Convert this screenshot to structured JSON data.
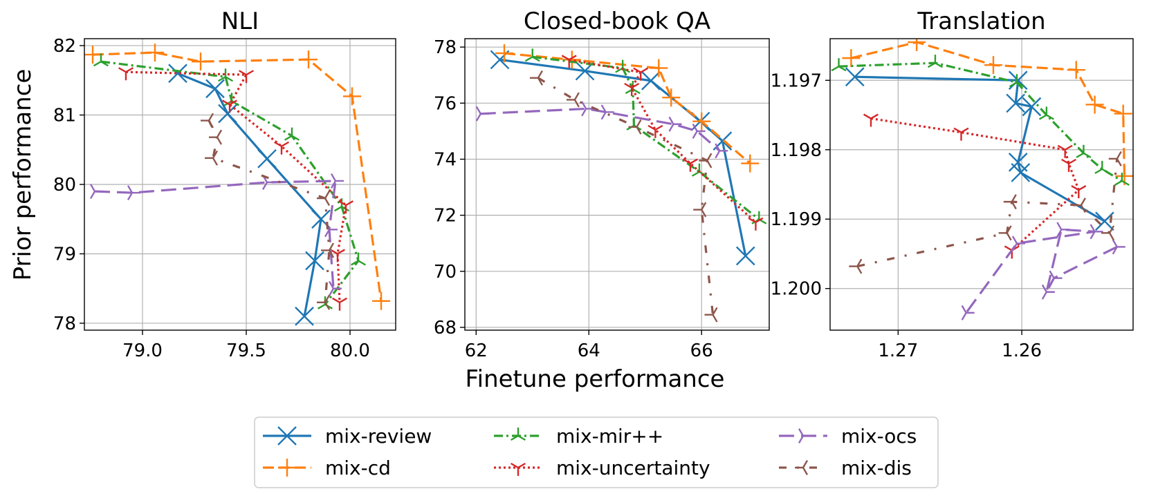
{
  "shared": {
    "xlabel": "Finetune performance",
    "ylabel": "Prior performance"
  },
  "legend": {
    "placement": "bottom-center",
    "columns": 3
  },
  "series_styles": [
    {
      "name": "mix-review",
      "color": "#1f77b4",
      "dash": "solid",
      "marker": "x"
    },
    {
      "name": "mix-cd",
      "color": "#ff7f0e",
      "dash": "dashed",
      "marker": "plus"
    },
    {
      "name": "mix-mir++",
      "color": "#2ca02c",
      "dash": "dashdot",
      "marker": "tri-down"
    },
    {
      "name": "mix-uncertainty",
      "color": "#d62728",
      "dash": "dotted",
      "marker": "tri-up"
    },
    {
      "name": "mix-ocs",
      "color": "#9467bd",
      "dash": "longdash",
      "marker": "tri-left"
    },
    {
      "name": "mix-dis",
      "color": "#8c564b",
      "dash": "dashdotsparse",
      "marker": "tri-right"
    }
  ],
  "chart_data": [
    {
      "type": "line",
      "title": "NLI",
      "xlim": [
        78.72,
        80.22
      ],
      "ylim": [
        77.9,
        82.1
      ],
      "xticks": [
        79.0,
        79.5,
        80.0
      ],
      "xtick_labels": [
        "79.0",
        "79.5",
        "80.0"
      ],
      "yticks": [
        78,
        79,
        80,
        81,
        82
      ],
      "ytick_labels": [
        "78",
        "79",
        "80",
        "81",
        "82"
      ],
      "x_inverted": false,
      "y_inverted": false,
      "grid": true,
      "series": [
        {
          "name": "mix-review",
          "x": [
            79.17,
            79.35,
            79.41,
            79.6,
            79.86,
            79.83,
            79.78
          ],
          "y": [
            81.6,
            81.38,
            81.02,
            80.37,
            79.5,
            78.9,
            78.1
          ]
        },
        {
          "name": "mix-cd",
          "x": [
            78.76,
            79.06,
            79.28,
            79.8,
            80.01,
            80.15
          ],
          "y": [
            81.87,
            81.9,
            81.77,
            81.8,
            81.27,
            78.32
          ]
        },
        {
          "name": "mix-mir++",
          "x": [
            78.8,
            79.4,
            79.43,
            79.72,
            79.96,
            80.04,
            79.88
          ],
          "y": [
            81.77,
            81.55,
            81.2,
            80.7,
            79.68,
            78.9,
            78.27
          ]
        },
        {
          "name": "mix-uncertainty",
          "x": [
            78.92,
            79.5,
            79.42,
            79.67,
            79.98,
            79.94,
            79.95
          ],
          "y": [
            81.62,
            81.58,
            81.15,
            80.55,
            79.7,
            79.0,
            78.3
          ]
        },
        {
          "name": "mix-ocs",
          "x": [
            78.77,
            78.95,
            79.6,
            79.93,
            79.9,
            79.92
          ],
          "y": [
            79.9,
            79.88,
            80.03,
            80.05,
            79.35,
            78.5
          ]
        },
        {
          "name": "mix-dis",
          "x": [
            79.32,
            79.36,
            79.34,
            79.88,
            79.9,
            79.88
          ],
          "y": [
            80.92,
            80.68,
            80.38,
            79.8,
            79.05,
            78.3
          ]
        }
      ]
    },
    {
      "type": "line",
      "title": "Closed-book QA",
      "xlim": [
        61.8,
        67.2
      ],
      "ylim": [
        67.9,
        78.3
      ],
      "xticks": [
        62,
        64,
        66
      ],
      "xtick_labels": [
        "62",
        "64",
        "66"
      ],
      "yticks": [
        68,
        70,
        72,
        74,
        76,
        78
      ],
      "ytick_labels": [
        "68",
        "70",
        "72",
        "74",
        "76",
        "78"
      ],
      "x_inverted": false,
      "y_inverted": false,
      "grid": true,
      "series": [
        {
          "name": "mix-review",
          "x": [
            62.42,
            63.93,
            65.1,
            65.98,
            66.37,
            66.78
          ],
          "y": [
            77.55,
            77.15,
            76.8,
            75.35,
            74.65,
            70.55
          ]
        },
        {
          "name": "mix-cd",
          "x": [
            62.5,
            63.7,
            65.24,
            65.46,
            66.0,
            66.86
          ],
          "y": [
            77.78,
            77.55,
            77.25,
            76.2,
            75.35,
            73.85
          ]
        },
        {
          "name": "mix-mir++",
          "x": [
            63.0,
            64.6,
            64.78,
            64.8,
            65.96,
            67.02
          ],
          "y": [
            77.65,
            77.25,
            76.5,
            75.2,
            73.55,
            71.85
          ]
        },
        {
          "name": "mix-uncertainty",
          "x": [
            63.65,
            64.92,
            64.76,
            65.18,
            65.8,
            66.96
          ],
          "y": [
            77.55,
            77.1,
            76.55,
            75.05,
            73.85,
            71.75
          ]
        },
        {
          "name": "mix-ocs",
          "x": [
            62.08,
            63.95,
            64.3,
            65.5,
            65.92,
            66.32
          ],
          "y": [
            75.62,
            75.8,
            75.68,
            75.25,
            75.0,
            74.3
          ]
        },
        {
          "name": "mix-dis",
          "x": [
            63.1,
            63.75,
            64.85,
            66.1,
            66.0,
            66.2
          ],
          "y": [
            76.9,
            76.12,
            75.15,
            73.95,
            72.2,
            68.45
          ]
        }
      ]
    },
    {
      "type": "line",
      "title": "Translation",
      "xlim": [
        1.2755,
        1.251
      ],
      "ylim": [
        1.2006,
        1.1964
      ],
      "xticks": [
        1.27,
        1.26
      ],
      "xtick_labels": [
        "1.27",
        "1.26"
      ],
      "yticks": [
        1.197,
        1.198,
        1.199,
        1.2
      ],
      "ytick_labels": [
        "1.197",
        "1.198",
        "1.199",
        "1.200"
      ],
      "x_inverted": true,
      "y_inverted": true,
      "grid": true,
      "series": [
        {
          "name": "mix-review",
          "x": [
            1.2735,
            1.2603,
            1.2605,
            1.2592,
            1.2603,
            1.2601,
            1.2533
          ],
          "y": [
            1.19695,
            1.197,
            1.19733,
            1.19738,
            1.19818,
            1.19833,
            1.19903
          ]
        },
        {
          "name": "mix-cd",
          "x": [
            1.2738,
            1.2685,
            1.2623,
            1.2556,
            1.2541,
            1.2518,
            1.2517
          ],
          "y": [
            1.19668,
            1.19645,
            1.19678,
            1.19685,
            1.19735,
            1.19748,
            1.19838
          ]
        },
        {
          "name": "mix-mir++",
          "x": [
            1.2748,
            1.267,
            1.2604,
            1.258,
            1.255,
            1.2535,
            1.2519
          ],
          "y": [
            1.1968,
            1.19675,
            1.19703,
            1.1975,
            1.19805,
            1.19828,
            1.19845
          ]
        },
        {
          "name": "mix-uncertainty",
          "x": [
            1.2722,
            1.2649,
            1.2565,
            1.2562,
            1.2554,
            1.2608
          ],
          "y": [
            1.19755,
            1.19775,
            1.198,
            1.1982,
            1.19858,
            1.19945
          ]
        },
        {
          "name": "mix-ocs",
          "x": [
            1.2523,
            1.2574,
            1.258,
            1.2568,
            1.2541,
            1.2604,
            1.2645
          ],
          "y": [
            1.1994,
            1.19985,
            1.20005,
            1.19915,
            1.19918,
            1.19935,
            1.20035
          ]
        },
        {
          "name": "mix-dis",
          "x": [
            1.2733,
            1.2612,
            1.2608,
            1.2552,
            1.2529,
            1.2523
          ],
          "y": [
            1.19968,
            1.1992,
            1.19875,
            1.1988,
            1.1992,
            1.19813
          ]
        }
      ]
    }
  ]
}
